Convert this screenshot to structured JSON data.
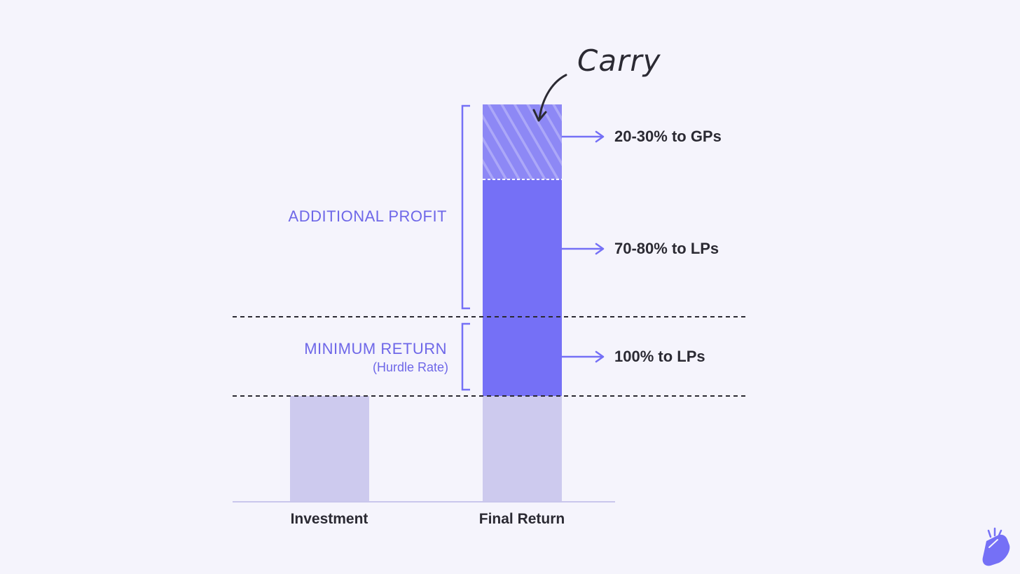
{
  "colors": {
    "background": "#f5f4fc",
    "accent": "#7570f6",
    "base": "#cdcaee",
    "text": "#2b2a33",
    "label": "#6e67e8",
    "axis": "#c9c6ec"
  },
  "categories": {
    "investment": "Investment",
    "final_return": "Final Return"
  },
  "sections": {
    "additional_profit": "ADDITIONAL PROFIT",
    "minimum_return": "MINIMUM RETURN",
    "hurdle_rate": "(Hurdle Rate)"
  },
  "destinations": {
    "gps": "20-30% to GPs",
    "lps_profit": "70-80% to LPs",
    "lps_hurdle": "100%  to LPs"
  },
  "annotation": {
    "carry": "Carry"
  },
  "icons": {
    "brand": "snapping-hand-icon"
  }
}
